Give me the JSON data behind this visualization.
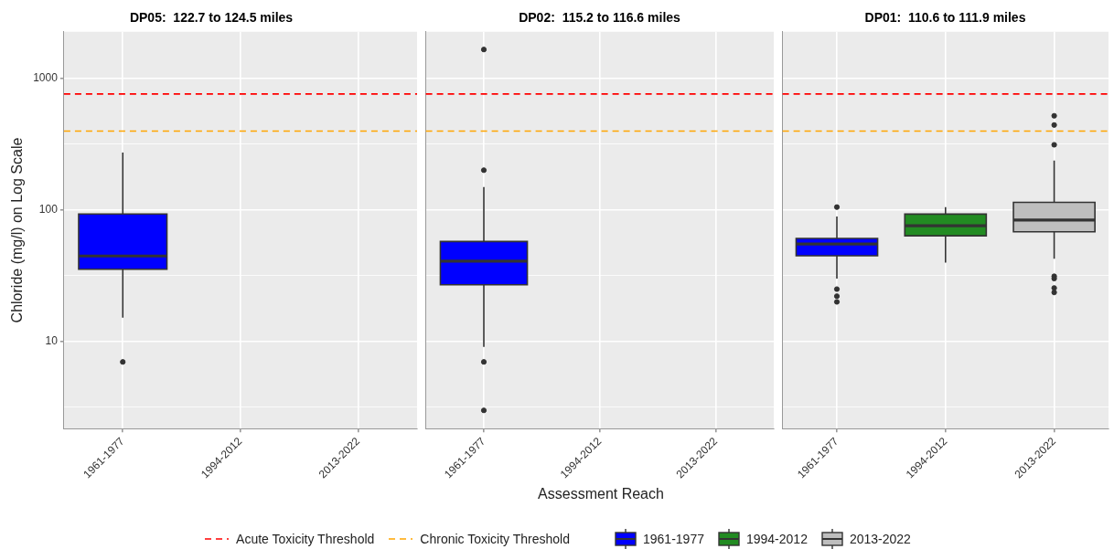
{
  "chart_data": [
    {
      "type": "box",
      "title": "DP05:  122.7 to 124.5 miles",
      "ylabel": "Chloride (mg/l) on Log Scale",
      "categories": [
        "1961-1977",
        "1994-2012",
        "2013-2022"
      ],
      "series": [
        {
          "color": "#0000ff",
          "boxes": [
            {
              "low": 15.2,
              "q1": 35.4,
              "median": 44.6,
              "q3": 93,
              "high": 272,
              "outliers": [
                7.0
              ]
            },
            null,
            null
          ]
        }
      ],
      "ylim": [
        2.18,
        2250
      ],
      "yticks": [
        {
          "value": 3.16,
          "label": null
        },
        10,
        {
          "value": 31.6,
          "label": null
        },
        100,
        {
          "value": 316,
          "label": null
        },
        1000
      ],
      "log": "y",
      "grid": true,
      "ref_lines": [
        {
          "axis": "y",
          "value": 759,
          "color": "#ff0000",
          "line_style": "dashed"
        },
        {
          "axis": "y",
          "value": 396,
          "color": "#ffa500",
          "line_style": "dashed"
        }
      ]
    },
    {
      "type": "box",
      "title": "DP02:  115.2 to 116.6 miles",
      "xlabel": "Assessment Reach",
      "categories": [
        "1961-1977",
        "1994-2012",
        "2013-2022"
      ],
      "series": [
        {
          "color": "#0000ff",
          "boxes": [
            {
              "low": 9.1,
              "q1": 27.0,
              "median": 40.8,
              "q3": 57.5,
              "high": 149,
              "outliers": [
                1650,
                200,
                7.0,
                3.0
              ]
            },
            null,
            null
          ]
        }
      ],
      "ylim": [
        2.18,
        2250
      ],
      "yticks": [
        {
          "value": 3.16,
          "label": null
        },
        10,
        {
          "value": 31.6,
          "label": null
        },
        100,
        {
          "value": 316,
          "label": null
        },
        1000
      ],
      "log": "y",
      "grid": true,
      "tick_labels": "x",
      "ref_lines": [
        {
          "axis": "y",
          "value": 759,
          "color": "#ff0000",
          "line_style": "dashed"
        },
        {
          "axis": "y",
          "value": 396,
          "color": "#ffa500",
          "line_style": "dashed"
        }
      ]
    },
    {
      "type": "box",
      "title": "DP01:  110.6 to 111.9 miles",
      "categories": [
        "1961-1977",
        "1994-2012",
        "2013-2022"
      ],
      "series": [
        {
          "name": "1961-1977",
          "color": "#0000ff",
          "boxes": [
            {
              "low": 30.1,
              "q1": 44.8,
              "median": 55,
              "q3": 60.7,
              "high": 89,
              "outliers": [
                105,
                25,
                22.1,
                20.0
              ]
            },
            null,
            null
          ]
        },
        {
          "name": "1994-2012",
          "color": "#228b22",
          "boxes": [
            null,
            {
              "low": 39.7,
              "q1": 63.5,
              "median": 75.7,
              "q3": 92.9,
              "high": 105
            },
            null
          ]
        },
        {
          "name": "2013-2022",
          "color": "#bebebe",
          "boxes": [
            null,
            null,
            {
              "low": 42.5,
              "q1": 68.1,
              "median": 83.6,
              "q3": 114,
              "high": 237,
              "outliers": [
                518,
                441,
                312,
                31.3,
                30.1,
                25.5,
                23.6
              ]
            }
          ]
        }
      ],
      "ylim": [
        2.18,
        2250
      ],
      "yticks": [
        {
          "value": 3.16,
          "label": null
        },
        10,
        {
          "value": 31.6,
          "label": null
        },
        100,
        {
          "value": 316,
          "label": null
        },
        1000
      ],
      "log": "y",
      "grid": true,
      "tick_labels": "x",
      "legend": "bottom",
      "ref_lines": [
        {
          "axis": "y",
          "value": 759,
          "label": "Acute Toxicity Threshold",
          "color": "#ff0000",
          "line_style": "dashed"
        },
        {
          "axis": "y",
          "value": 396,
          "label": "Chronic Toxicity Threshold",
          "color": "#ffa500",
          "line_style": "dashed"
        }
      ]
    }
  ]
}
